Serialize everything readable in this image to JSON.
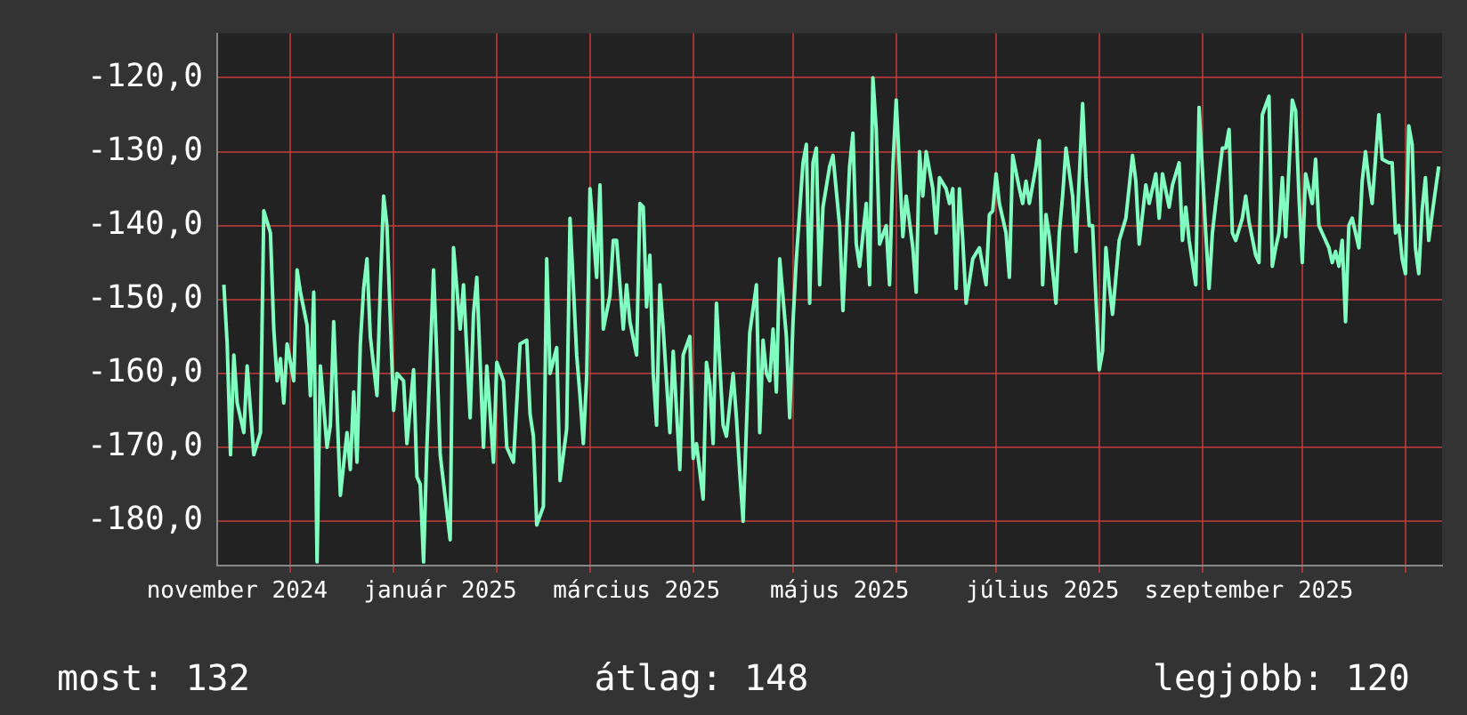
{
  "chart_data": {
    "type": "line",
    "color": "#80ffc0",
    "grid": true,
    "legend": false,
    "marker": "none",
    "line_style": "solid",
    "xlim": [
      "2024-11-09",
      "2025-11-12"
    ],
    "xticks": [
      {
        "value": "2024-11-15",
        "label": "november 2024"
      },
      {
        "value": "2024-12-01",
        "label": null
      },
      {
        "value": "2025-01-01",
        "label": null
      },
      {
        "value": "2025-01-15",
        "label": "január 2025"
      },
      {
        "value": "2025-02-01",
        "label": null
      },
      {
        "value": "2025-03-01",
        "label": null
      },
      {
        "value": "2025-03-15",
        "label": "március 2025"
      },
      {
        "value": "2025-04-01",
        "label": null
      },
      {
        "value": "2025-05-01",
        "label": null
      },
      {
        "value": "2025-05-15",
        "label": "május 2025"
      },
      {
        "value": "2025-06-01",
        "label": null
      },
      {
        "value": "2025-07-01",
        "label": null
      },
      {
        "value": "2025-07-15",
        "label": "július 2025"
      },
      {
        "value": "2025-08-01",
        "label": null
      },
      {
        "value": "2025-09-01",
        "label": null
      },
      {
        "value": "2025-09-15",
        "label": "szeptember 2025"
      },
      {
        "value": "2025-10-01",
        "label": null
      },
      {
        "value": "2025-11-01",
        "label": null
      }
    ],
    "ylim": [
      -186,
      -114
    ],
    "yticks": [
      {
        "value": -180,
        "label": "-180,0"
      },
      {
        "value": -170,
        "label": "-170,0"
      },
      {
        "value": -160,
        "label": "-160,0"
      },
      {
        "value": -150,
        "label": "-150,0"
      },
      {
        "value": -140,
        "label": "-140,0"
      },
      {
        "value": -130,
        "label": "-130,0"
      },
      {
        "value": -120,
        "label": "-120,0"
      }
    ],
    "annotations": [
      "most: 132",
      "átlag: 148",
      "legjobb: 120"
    ],
    "x": [
      "2024-11-11",
      "2024-11-12",
      "2024-11-13",
      "2024-11-14",
      "2024-11-15",
      "2024-11-17",
      "2024-11-18",
      "2024-11-19",
      "2024-11-20",
      "2024-11-22",
      "2024-11-23",
      "2024-11-25",
      "2024-11-26",
      "2024-11-27",
      "2024-11-28",
      "2024-11-29",
      "2024-11-30",
      "2024-12-02",
      "2024-12-03",
      "2024-12-04",
      "2024-12-06",
      "2024-12-07",
      "2024-12-08",
      "2024-12-09",
      "2024-12-10",
      "2024-12-12",
      "2024-12-13",
      "2024-12-14",
      "2024-12-16",
      "2024-12-18",
      "2024-12-19",
      "2024-12-20",
      "2024-12-21",
      "2024-12-22",
      "2024-12-23",
      "2024-12-24",
      "2024-12-25",
      "2024-12-27",
      "2024-12-28",
      "2024-12-29",
      "2024-12-30",
      "2025-01-01",
      "2025-01-02",
      "2025-01-04",
      "2025-01-05",
      "2025-01-07",
      "2025-01-08",
      "2025-01-09",
      "2025-01-10",
      "2025-01-11",
      "2025-01-13",
      "2025-01-14",
      "2025-01-15",
      "2025-01-18",
      "2025-01-19",
      "2025-01-21",
      "2025-01-22",
      "2025-01-24",
      "2025-01-25",
      "2025-01-26",
      "2025-01-28",
      "2025-01-29",
      "2025-01-31",
      "2025-02-01",
      "2025-02-03",
      "2025-02-04",
      "2025-02-06",
      "2025-02-08",
      "2025-02-10",
      "2025-02-11",
      "2025-02-12",
      "2025-02-13",
      "2025-02-15",
      "2025-02-16",
      "2025-02-17",
      "2025-02-19",
      "2025-02-20",
      "2025-02-22",
      "2025-02-23",
      "2025-02-25",
      "2025-02-26",
      "2025-02-27",
      "2025-02-28",
      "2025-03-01",
      "2025-03-03",
      "2025-03-04",
      "2025-03-05",
      "2025-03-07",
      "2025-03-08",
      "2025-03-09",
      "2025-03-11",
      "2025-03-12",
      "2025-03-13",
      "2025-03-15",
      "2025-03-16",
      "2025-03-17",
      "2025-03-18",
      "2025-03-19",
      "2025-03-20",
      "2025-03-21",
      "2025-03-22",
      "2025-03-23",
      "2025-03-25",
      "2025-03-26",
      "2025-03-28",
      "2025-03-29",
      "2025-03-31",
      "2025-04-01",
      "2025-04-02",
      "2025-04-04",
      "2025-04-05",
      "2025-04-06",
      "2025-04-07",
      "2025-04-08",
      "2025-04-10",
      "2025-04-11",
      "2025-04-13",
      "2025-04-14",
      "2025-04-15",
      "2025-04-16",
      "2025-04-18",
      "2025-04-20",
      "2025-04-21",
      "2025-04-22",
      "2025-04-23",
      "2025-04-24",
      "2025-04-25",
      "2025-04-26",
      "2025-04-27",
      "2025-04-29",
      "2025-04-30",
      "2025-05-01",
      "2025-05-02",
      "2025-05-04",
      "2025-05-05",
      "2025-05-06",
      "2025-05-07",
      "2025-05-08",
      "2025-05-09",
      "2025-05-10",
      "2025-05-12",
      "2025-05-13",
      "2025-05-15",
      "2025-05-16",
      "2025-05-18",
      "2025-05-19",
      "2025-05-20",
      "2025-05-21",
      "2025-05-23",
      "2025-05-24",
      "2025-05-25",
      "2025-05-26",
      "2025-05-27",
      "2025-05-29",
      "2025-05-30",
      "2025-05-31",
      "2025-06-01",
      "2025-06-03",
      "2025-06-04",
      "2025-06-06",
      "2025-06-07",
      "2025-06-08",
      "2025-06-09",
      "2025-06-10",
      "2025-06-12",
      "2025-06-13",
      "2025-06-14",
      "2025-06-16",
      "2025-06-17",
      "2025-06-18",
      "2025-06-19",
      "2025-06-20",
      "2025-06-21",
      "2025-06-22",
      "2025-06-24",
      "2025-06-26",
      "2025-06-28",
      "2025-06-29",
      "2025-06-30",
      "2025-07-01",
      "2025-07-02",
      "2025-07-04",
      "2025-07-05",
      "2025-07-06",
      "2025-07-08",
      "2025-07-09",
      "2025-07-10",
      "2025-07-11",
      "2025-07-13",
      "2025-07-14",
      "2025-07-15",
      "2025-07-16",
      "2025-07-17",
      "2025-07-19",
      "2025-07-20",
      "2025-07-21",
      "2025-07-22",
      "2025-07-24",
      "2025-07-25",
      "2025-07-27",
      "2025-07-28",
      "2025-07-29",
      "2025-07-30",
      "2025-08-01",
      "2025-08-02",
      "2025-08-03",
      "2025-08-04",
      "2025-08-05",
      "2025-08-06",
      "2025-08-07",
      "2025-08-09",
      "2025-08-11",
      "2025-08-12",
      "2025-08-13",
      "2025-08-15",
      "2025-08-16",
      "2025-08-18",
      "2025-08-19",
      "2025-08-20",
      "2025-08-22",
      "2025-08-23",
      "2025-08-25",
      "2025-08-26",
      "2025-08-27",
      "2025-08-28",
      "2025-08-30",
      "2025-08-31",
      "2025-09-02",
      "2025-09-03",
      "2025-09-04",
      "2025-09-05",
      "2025-09-07",
      "2025-09-08",
      "2025-09-09",
      "2025-09-10",
      "2025-09-11",
      "2025-09-13",
      "2025-09-14",
      "2025-09-15",
      "2025-09-17",
      "2025-09-18",
      "2025-09-19",
      "2025-09-21",
      "2025-09-22",
      "2025-09-23",
      "2025-09-24",
      "2025-09-25",
      "2025-09-26",
      "2025-09-28",
      "2025-09-29",
      "2025-09-30",
      "2025-10-01",
      "2025-10-02",
      "2025-10-04",
      "2025-10-05",
      "2025-10-06",
      "2025-10-07",
      "2025-10-09",
      "2025-10-10",
      "2025-10-11",
      "2025-10-12",
      "2025-10-13",
      "2025-10-14",
      "2025-10-15",
      "2025-10-16",
      "2025-10-18",
      "2025-10-19",
      "2025-10-20",
      "2025-10-21",
      "2025-10-22",
      "2025-10-24",
      "2025-10-25",
      "2025-10-27",
      "2025-10-28",
      "2025-10-29",
      "2025-10-30",
      "2025-10-31",
      "2025-11-01",
      "2025-11-02",
      "2025-11-03",
      "2025-11-04",
      "2025-11-05",
      "2025-11-06",
      "2025-11-07",
      "2025-11-08",
      "2025-11-09",
      "2025-11-11"
    ],
    "values": [
      -148,
      -156,
      -171,
      -157.5,
      -164,
      -168,
      -159,
      -165,
      -171,
      -168,
      -138,
      -141,
      -154,
      -161,
      -158,
      -164,
      -156,
      -161,
      -146,
      -149,
      -153.5,
      -163,
      -149,
      -185.5,
      -159,
      -170,
      -167,
      -153,
      -176.5,
      -168,
      -173,
      -162.5,
      -172,
      -156,
      -148.5,
      -144.5,
      -155,
      -163,
      -148.5,
      -136,
      -140,
      -165,
      -160,
      -161,
      -169.5,
      -159.5,
      -174,
      -175,
      -185.5,
      -170,
      -146,
      -158,
      -171,
      -182.5,
      -143,
      -154,
      -148,
      -166,
      -152,
      -147,
      -170,
      -159,
      -172,
      -158.5,
      -161,
      -170,
      -172,
      -156,
      -155.5,
      -165.5,
      -168.5,
      -180.5,
      -178,
      -144.5,
      -160,
      -156.5,
      -174.5,
      -167.5,
      -139,
      -157.5,
      -163,
      -169.5,
      -160.5,
      -135,
      -147,
      -134.5,
      -154,
      -149.5,
      -142,
      -142,
      -154,
      -148,
      -153,
      -157.5,
      -137,
      -137.5,
      -151,
      -144,
      -160,
      -167,
      -148,
      -154,
      -168,
      -157,
      -173,
      -157.5,
      -155,
      -171.5,
      -169.5,
      -177,
      -158.5,
      -161.5,
      -169.5,
      -150.5,
      -167,
      -168.5,
      -160,
      -166,
      -173.5,
      -180,
      -154.5,
      -148,
      -168,
      -155.5,
      -160,
      -161,
      -154,
      -162.5,
      -144.5,
      -155,
      -166,
      -153,
      -144.5,
      -131.5,
      -129,
      -150.5,
      -131.5,
      -129.5,
      -148,
      -137.5,
      -132,
      -130.5,
      -140,
      -151.5,
      -132,
      -127.5,
      -142.5,
      -145.5,
      -137,
      -148,
      -120,
      -127,
      -142.5,
      -140,
      -148,
      -132,
      -123,
      -141.5,
      -136,
      -143,
      -149,
      -130,
      -136,
      -130,
      -135,
      -141,
      -133.5,
      -135,
      -137,
      -135,
      -148.5,
      -135,
      -142,
      -150.5,
      -144.5,
      -143,
      -148,
      -138.5,
      -138,
      -133,
      -137,
      -141,
      -147,
      -130.5,
      -135,
      -137,
      -134,
      -137,
      -132,
      -128.5,
      -148,
      -138.5,
      -141.5,
      -150.5,
      -141,
      -136,
      -129.5,
      -136,
      -143.5,
      -123.5,
      -133.5,
      -140,
      -140,
      -159.5,
      -157,
      -143,
      -148,
      -152,
      -147,
      -142,
      -139,
      -130.5,
      -134,
      -142.5,
      -134.5,
      -137,
      -133,
      -139,
      -133,
      -137.5,
      -134.5,
      -131.5,
      -142,
      -137.5,
      -142,
      -148,
      -124,
      -141,
      -148.5,
      -141,
      -137,
      -129.5,
      -129.5,
      -127,
      -141,
      -142,
      -139,
      -136,
      -139.5,
      -144,
      -145,
      -125,
      -122.5,
      -145.5,
      -143,
      -141,
      -133.5,
      -141.5,
      -123,
      -124.5,
      -136,
      -145,
      -133,
      -137,
      -131,
      -140,
      -141,
      -143,
      -145,
      -143.5,
      -145.5,
      -142,
      -153,
      -140,
      -139,
      -143,
      -134,
      -130,
      -134,
      -137,
      -125,
      -131,
      -131.5,
      -131.5,
      -141,
      -140,
      -144.5,
      -146.5,
      -126.5,
      -129,
      -143,
      -146.5,
      -138,
      -133.5,
      -142,
      -138.5,
      -132
    ]
  }
}
